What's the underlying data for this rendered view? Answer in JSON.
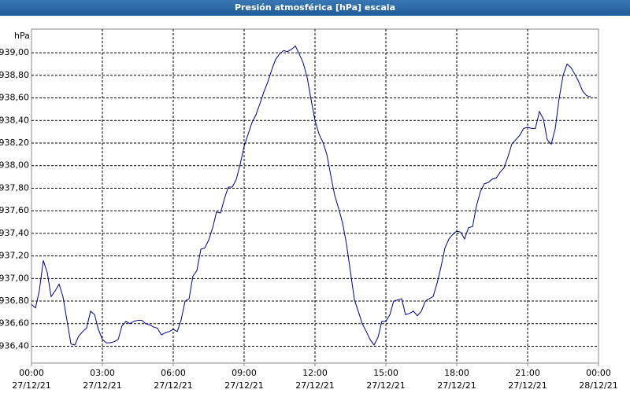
{
  "chart_data": {
    "type": "line",
    "title": "Presión atmosférica [hPa] escala",
    "y_label": "hPa",
    "x": [
      0,
      0.17,
      0.33,
      0.5,
      0.67,
      0.83,
      1,
      1.17,
      1.33,
      1.5,
      1.67,
      1.83,
      2,
      2.17,
      2.33,
      2.5,
      2.67,
      2.83,
      3,
      3.17,
      3.33,
      3.5,
      3.67,
      3.83,
      4,
      4.17,
      4.33,
      4.5,
      4.67,
      4.83,
      5,
      5.17,
      5.33,
      5.5,
      5.67,
      5.83,
      6,
      6.17,
      6.33,
      6.5,
      6.67,
      6.83,
      7,
      7.17,
      7.33,
      7.5,
      7.67,
      7.83,
      8,
      8.17,
      8.33,
      8.5,
      8.67,
      8.83,
      9,
      9.17,
      9.33,
      9.5,
      9.67,
      9.83,
      10,
      10.17,
      10.33,
      10.5,
      10.67,
      10.83,
      11,
      11.17,
      11.33,
      11.5,
      11.67,
      11.83,
      12,
      12.17,
      12.33,
      12.5,
      12.67,
      12.83,
      13,
      13.17,
      13.33,
      13.5,
      13.67,
      13.83,
      14,
      14.17,
      14.33,
      14.5,
      14.67,
      14.83,
      15,
      15.17,
      15.33,
      15.5,
      15.67,
      15.83,
      16,
      16.17,
      16.33,
      16.5,
      16.67,
      16.83,
      17,
      17.17,
      17.33,
      17.5,
      17.67,
      17.83,
      18,
      18.17,
      18.33,
      18.5,
      18.67,
      18.83,
      19,
      19.17,
      19.33,
      19.5,
      19.67,
      19.83,
      20,
      20.17,
      20.33,
      20.5,
      20.67,
      20.83,
      21,
      21.17,
      21.33,
      21.5,
      21.67,
      21.83,
      22,
      22.17,
      22.33,
      22.5,
      22.67,
      22.83,
      23,
      23.17,
      23.33,
      23.5,
      23.67
    ],
    "series": [
      {
        "color": "#00008b",
        "values": [
          936.77,
          936.74,
          936.89,
          937.16,
          937.05,
          936.84,
          936.89,
          936.95,
          936.84,
          936.63,
          936.42,
          936.41,
          936.49,
          936.53,
          936.56,
          936.71,
          936.68,
          936.55,
          936.46,
          936.43,
          936.43,
          936.44,
          936.46,
          936.58,
          936.62,
          936.6,
          936.62,
          936.63,
          936.63,
          936.6,
          936.59,
          936.57,
          936.56,
          936.5,
          936.52,
          936.53,
          936.55,
          936.53,
          936.63,
          936.8,
          936.82,
          937.02,
          937.07,
          937.26,
          937.27,
          937.34,
          937.45,
          937.59,
          937.58,
          937.71,
          937.81,
          937.81,
          937.88,
          938.01,
          938.17,
          938.28,
          938.38,
          938.45,
          938.55,
          938.65,
          938.74,
          938.85,
          938.94,
          938.99,
          939.02,
          939.01,
          939.03,
          939.06,
          938.99,
          938.91,
          938.78,
          938.59,
          938.4,
          938.28,
          938.21,
          938.1,
          937.91,
          937.74,
          937.62,
          937.49,
          937.31,
          937.06,
          936.81,
          936.71,
          936.6,
          936.53,
          936.46,
          936.41,
          936.48,
          936.62,
          936.62,
          936.68,
          936.8,
          936.81,
          936.82,
          936.68,
          936.69,
          936.71,
          936.67,
          936.71,
          936.8,
          936.82,
          936.84,
          936.96,
          937.1,
          937.27,
          937.35,
          937.39,
          937.42,
          937.41,
          937.35,
          937.45,
          937.46,
          937.64,
          937.77,
          937.84,
          937.85,
          937.88,
          937.89,
          937.94,
          937.98,
          938.08,
          938.19,
          938.23,
          938.27,
          938.33,
          938.34,
          938.33,
          938.33,
          938.48,
          938.41,
          938.23,
          938.19,
          938.33,
          938.59,
          938.8,
          938.9,
          938.87,
          938.81,
          938.74,
          938.66,
          938.62,
          938.61
        ]
      }
    ],
    "xlim": [
      0,
      24
    ],
    "xticks": [
      {
        "value": 0,
        "label": "00:00"
      },
      {
        "value": 3,
        "label": "03:00"
      },
      {
        "value": 6,
        "label": "06:00"
      },
      {
        "value": 9,
        "label": "09:00"
      },
      {
        "value": 12,
        "label": "12:00"
      },
      {
        "value": 15,
        "label": "15:00"
      },
      {
        "value": 18,
        "label": "18:00"
      },
      {
        "value": 21,
        "label": "21:00"
      },
      {
        "value": 24,
        "label": "00:00"
      }
    ],
    "xtick_dates": [
      "27/12/21",
      "27/12/21",
      "27/12/21",
      "27/12/21",
      "27/12/21",
      "27/12/21",
      "27/12/21",
      "27/12/21",
      "28/12/21"
    ],
    "ylim": [
      936.25,
      939.21
    ],
    "yticks": [
      {
        "value": 936.4,
        "label": "936,40"
      },
      {
        "value": 936.6,
        "label": "936,60"
      },
      {
        "value": 936.8,
        "label": "936,80"
      },
      {
        "value": 937.0,
        "label": "937,00"
      },
      {
        "value": 937.2,
        "label": "937,20"
      },
      {
        "value": 937.4,
        "label": "937,40"
      },
      {
        "value": 937.6,
        "label": "937,60"
      },
      {
        "value": 937.8,
        "label": "937,80"
      },
      {
        "value": 938.0,
        "label": "938,00"
      },
      {
        "value": 938.2,
        "label": "938,20"
      },
      {
        "value": 938.4,
        "label": "938,40"
      },
      {
        "value": 938.6,
        "label": "938,60"
      },
      {
        "value": 938.8,
        "label": "938,80"
      },
      {
        "value": 939.0,
        "label": "939,00"
      }
    ],
    "grid": true
  }
}
